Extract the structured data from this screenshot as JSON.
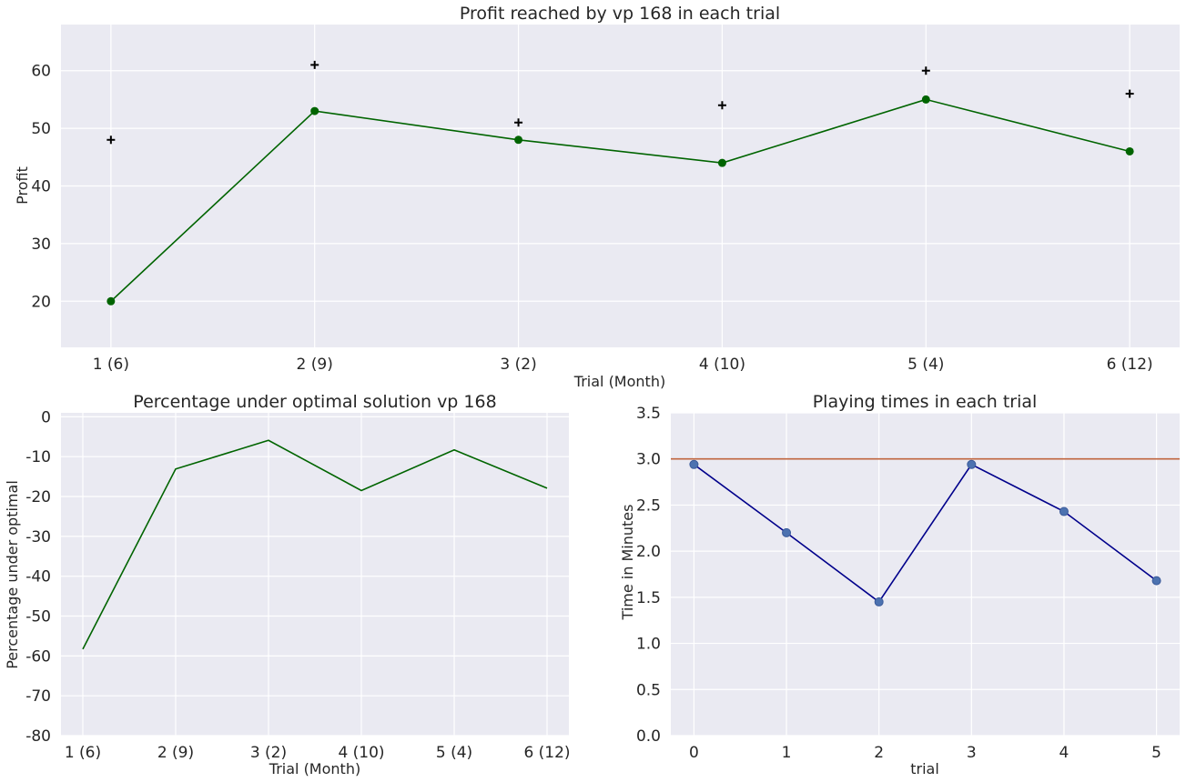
{
  "chart_data": [
    {
      "id": "profit",
      "type": "line",
      "title": "Profit reached by vp 168 in each trial",
      "xlabel": "Trial (Month)",
      "ylabel": "Profit",
      "categories": [
        "1 (6)",
        "2 (9)",
        "3 (2)",
        "4 (10)",
        "5 (4)",
        "6 (12)"
      ],
      "ylim": [
        12,
        68
      ],
      "yticks": [
        20,
        30,
        40,
        50,
        60
      ],
      "grid": true,
      "series": [
        {
          "marker": "circle",
          "line": true,
          "color": "#006400",
          "values": [
            20,
            53,
            48,
            44,
            55,
            46
          ]
        },
        {
          "marker": "plus",
          "line": false,
          "color": "#000000",
          "values": [
            48,
            61,
            51,
            54,
            60,
            56
          ]
        }
      ]
    },
    {
      "id": "percentage",
      "type": "line",
      "title": "Percentage under optimal solution vp 168",
      "xlabel": "Trial (Month)",
      "ylabel": "Percentage under optimal",
      "categories": [
        "1 (6)",
        "2 (9)",
        "3 (2)",
        "4 (10)",
        "5 (4)",
        "6 (12)"
      ],
      "ylim": [
        -80,
        1
      ],
      "yticks": [
        0,
        -10,
        -20,
        -30,
        -40,
        -50,
        -60,
        -70,
        -80
      ],
      "grid": true,
      "series": [
        {
          "marker": "none",
          "line": true,
          "color": "#006400",
          "values": [
            -58.3,
            -13.1,
            -5.9,
            -18.5,
            -8.3,
            -17.9
          ]
        }
      ]
    },
    {
      "id": "times",
      "type": "line",
      "title": "Playing times in each trial",
      "xlabel": "trial",
      "ylabel": "Time in Minutes",
      "x": [
        0,
        1,
        2,
        3,
        4,
        5
      ],
      "xticks": [
        0,
        1,
        2,
        3,
        4,
        5
      ],
      "xlim": [
        -0.25,
        5.25
      ],
      "ylim": [
        0,
        3.5
      ],
      "yticks": [
        0.0,
        0.5,
        1.0,
        1.5,
        2.0,
        2.5,
        3.0,
        3.5
      ],
      "grid": true,
      "hline": {
        "y": 3.0,
        "color": "#c0653f"
      },
      "series": [
        {
          "marker": "circle",
          "line": true,
          "color": "#00008b",
          "marker_color": "#4c72b0",
          "values": [
            2.94,
            2.2,
            1.45,
            2.94,
            2.43,
            1.68
          ]
        }
      ]
    }
  ]
}
